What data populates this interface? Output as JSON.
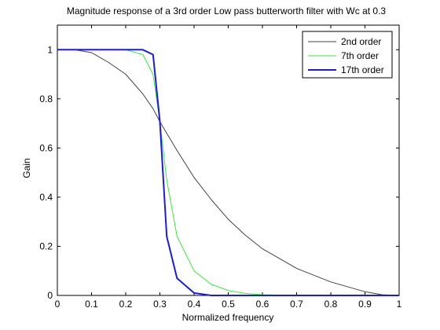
{
  "chart_data": {
    "type": "line",
    "title": "Magnitude response of a 3rd order Low pass butterworth filter with Wc at 0.3",
    "xlabel": "Normalized frequency",
    "ylabel": "Gain",
    "xlim": [
      0,
      1
    ],
    "ylim": [
      0,
      1.1
    ],
    "xticks": [
      "0",
      "0.1",
      "0.2",
      "0.3",
      "0.4",
      "0.5",
      "0.6",
      "0.7",
      "0.8",
      "0.9",
      "1"
    ],
    "yticks": [
      "0",
      "0.2",
      "0.4",
      "0.6",
      "0.8",
      "1"
    ],
    "grid": false,
    "legend_position": "top-right",
    "x": [
      0,
      0.05,
      0.1,
      0.15,
      0.2,
      0.25,
      0.28,
      0.3,
      0.32,
      0.35,
      0.4,
      0.45,
      0.5,
      0.55,
      0.6,
      0.7,
      0.8,
      0.9,
      0.95,
      1.0
    ],
    "series": [
      {
        "name": "2nd order",
        "color": "#404040",
        "values": [
          1.0,
          1.0,
          0.988,
          0.948,
          0.9,
          0.82,
          0.76,
          0.707,
          0.66,
          0.59,
          0.48,
          0.39,
          0.31,
          0.245,
          0.19,
          0.11,
          0.055,
          0.015,
          0.003,
          0.0
        ]
      },
      {
        "name": "7th order",
        "color": "#33ee33",
        "values": [
          1.0,
          1.0,
          1.0,
          1.0,
          1.0,
          0.98,
          0.9,
          0.707,
          0.47,
          0.24,
          0.1,
          0.045,
          0.02,
          0.008,
          0.003,
          0.0,
          0.0,
          0.0,
          0.0,
          0.0
        ]
      },
      {
        "name": "17th order",
        "color": "#1a1aee",
        "values": [
          1.0,
          1.0,
          1.0,
          1.0,
          1.0,
          1.0,
          0.98,
          0.707,
          0.24,
          0.07,
          0.01,
          0.0,
          0.0,
          0.0,
          0.0,
          0.0,
          0.0,
          0.0,
          0.0,
          0.0
        ]
      }
    ]
  }
}
